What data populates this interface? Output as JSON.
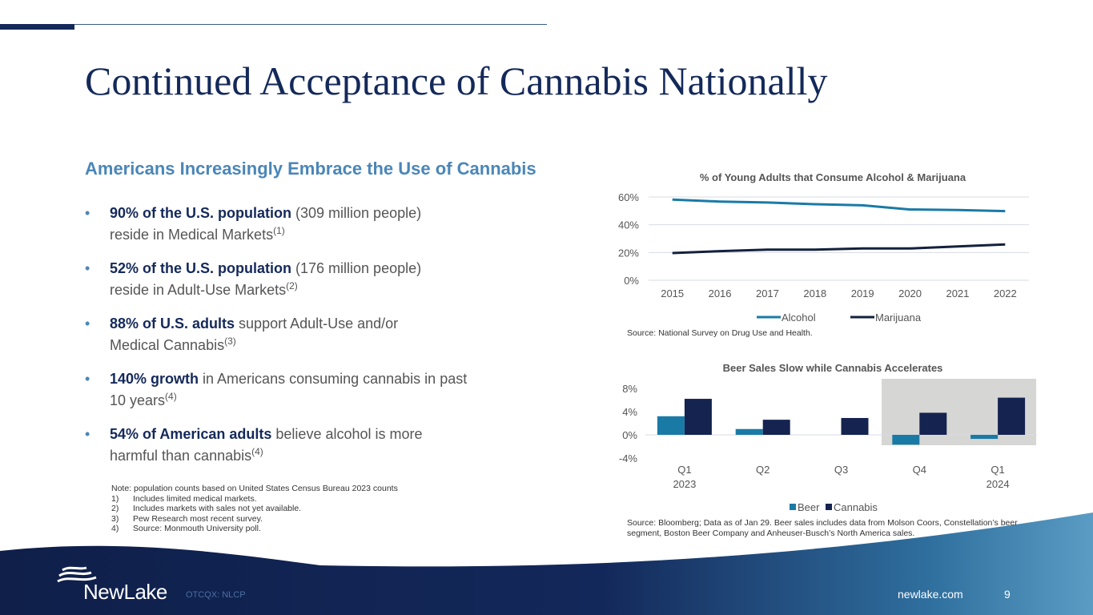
{
  "title": "Continued Acceptance of Cannabis Nationally",
  "subtitle": "Americans Increasingly Embrace the Use of Cannabis",
  "bullets": [
    {
      "bold": "90% of the U.S. population",
      "text": " (309 million people) reside in Medical Markets",
      "sup": "(1)"
    },
    {
      "bold": "52% of the U.S. population",
      "text": " (176 million people) reside in Adult-Use Markets",
      "sup": "(2)"
    },
    {
      "bold": "88% of U.S. adults",
      "text": " support Adult-Use and/or Medical Cannabis",
      "sup": "(3)"
    },
    {
      "bold": "140% growth",
      "text": " in Americans consuming cannabis in past 10 years",
      "sup": "(4)"
    },
    {
      "bold": "54% of American adults",
      "text": " believe alcohol is more harmful than cannabis",
      "sup": "(4)"
    }
  ],
  "notes": {
    "header": "Note: population counts based on United States Census Bureau 2023 counts",
    "items": [
      {
        "n": "1)",
        "t": "Includes limited medical markets."
      },
      {
        "n": "2)",
        "t": "Includes markets with sales not yet available."
      },
      {
        "n": "3)",
        "t": "Pew Research most recent survey."
      },
      {
        "n": "4)",
        "t": "Source: Monmouth University poll."
      }
    ]
  },
  "footer": {
    "logo": "NewLake",
    "ticker": "OTCQX: NLCP",
    "website": "newlake.com",
    "page": "9"
  },
  "colors": {
    "navy": "#14295a",
    "teal": "#1a7aa6",
    "accent": "#4a86b8"
  },
  "chart_data": [
    {
      "type": "line",
      "title": "% of Young Adults that Consume Alcohol & Marijuana",
      "categories": [
        "2015",
        "2016",
        "2017",
        "2018",
        "2019",
        "2020",
        "2021",
        "2022"
      ],
      "series": [
        {
          "name": "Alcohol",
          "color": "#1a7aa6",
          "values": [
            58.1,
            56.7,
            56.0,
            54.8,
            54.0,
            51.0,
            50.6,
            49.8
          ]
        },
        {
          "name": "Marijuana",
          "color": "#14213d",
          "values": [
            19.6,
            21.0,
            22.1,
            22.1,
            22.9,
            22.9,
            24.4,
            25.8
          ]
        }
      ],
      "yticks": [
        "0%",
        "20%",
        "40%",
        "60%"
      ],
      "ylim": [
        0,
        60
      ],
      "grid": true,
      "legend": "bottom",
      "source": "Source: National Survey on Drug Use and Health."
    },
    {
      "type": "bar",
      "title": "Beer Sales Slow while Cannabis Accelerates",
      "categories": [
        [
          "Q1",
          "2023"
        ],
        [
          "Q2",
          ""
        ],
        [
          "Q3",
          ""
        ],
        [
          "Q4",
          ""
        ],
        [
          "Q1",
          "2024"
        ]
      ],
      "series": [
        {
          "name": "Beer",
          "color": "#1a7aa6",
          "values": [
            3.2,
            1.0,
            0.0,
            -1.7,
            -0.7
          ]
        },
        {
          "name": "Cannabis",
          "color": "#14234f",
          "values": [
            6.2,
            2.6,
            2.9,
            3.8,
            6.4
          ]
        }
      ],
      "yticks": [
        "-4%",
        "0%",
        "4%",
        "8%"
      ],
      "ylim": [
        -4,
        8
      ],
      "legend": "bottom",
      "highlight": [
        "Q4",
        "Q1 2024"
      ],
      "source": "Source: Bloomberg; Data as of Jan 29. Beer sales includes data from Molson Coors, Constellation’s beer segment, Boston Beer Company and Anheuser-Busch’s North America sales."
    }
  ]
}
